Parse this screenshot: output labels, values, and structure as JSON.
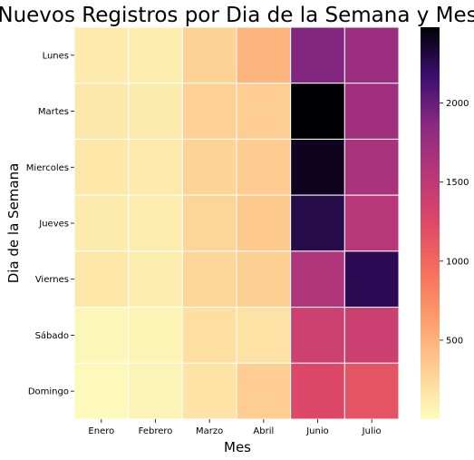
{
  "chart_data": {
    "type": "heatmap",
    "title": "Nuevos Registros por Dia de la Semana y Mes",
    "xlabel": "Mes",
    "ylabel": "Dia de la Semana",
    "x_categories": [
      "Enero",
      "Febrero",
      "Marzo",
      "Abril",
      "Junio",
      "Julio"
    ],
    "y_categories": [
      "Lunes",
      "Martes",
      "Miercoles",
      "Jueves",
      "Viernes",
      "Sábado",
      "Domingo"
    ],
    "values": [
      [
        130,
        110,
        290,
        480,
        1900,
        1750
      ],
      [
        140,
        120,
        300,
        320,
        2480,
        1720
      ],
      [
        150,
        130,
        280,
        330,
        2400,
        1650
      ],
      [
        120,
        100,
        270,
        350,
        2280,
        1550
      ],
      [
        150,
        110,
        260,
        310,
        1600,
        2250
      ],
      [
        40,
        70,
        200,
        180,
        1380,
        1400
      ],
      [
        30,
        60,
        170,
        320,
        1250,
        1150
      ]
    ],
    "colormap": "magma_r",
    "colorbar": {
      "vmin": 0,
      "vmax": 2480,
      "ticks": [
        500,
        1000,
        1500,
        2000
      ]
    },
    "grid_line_color": "#ffffff",
    "legend": "colorbar-right"
  }
}
